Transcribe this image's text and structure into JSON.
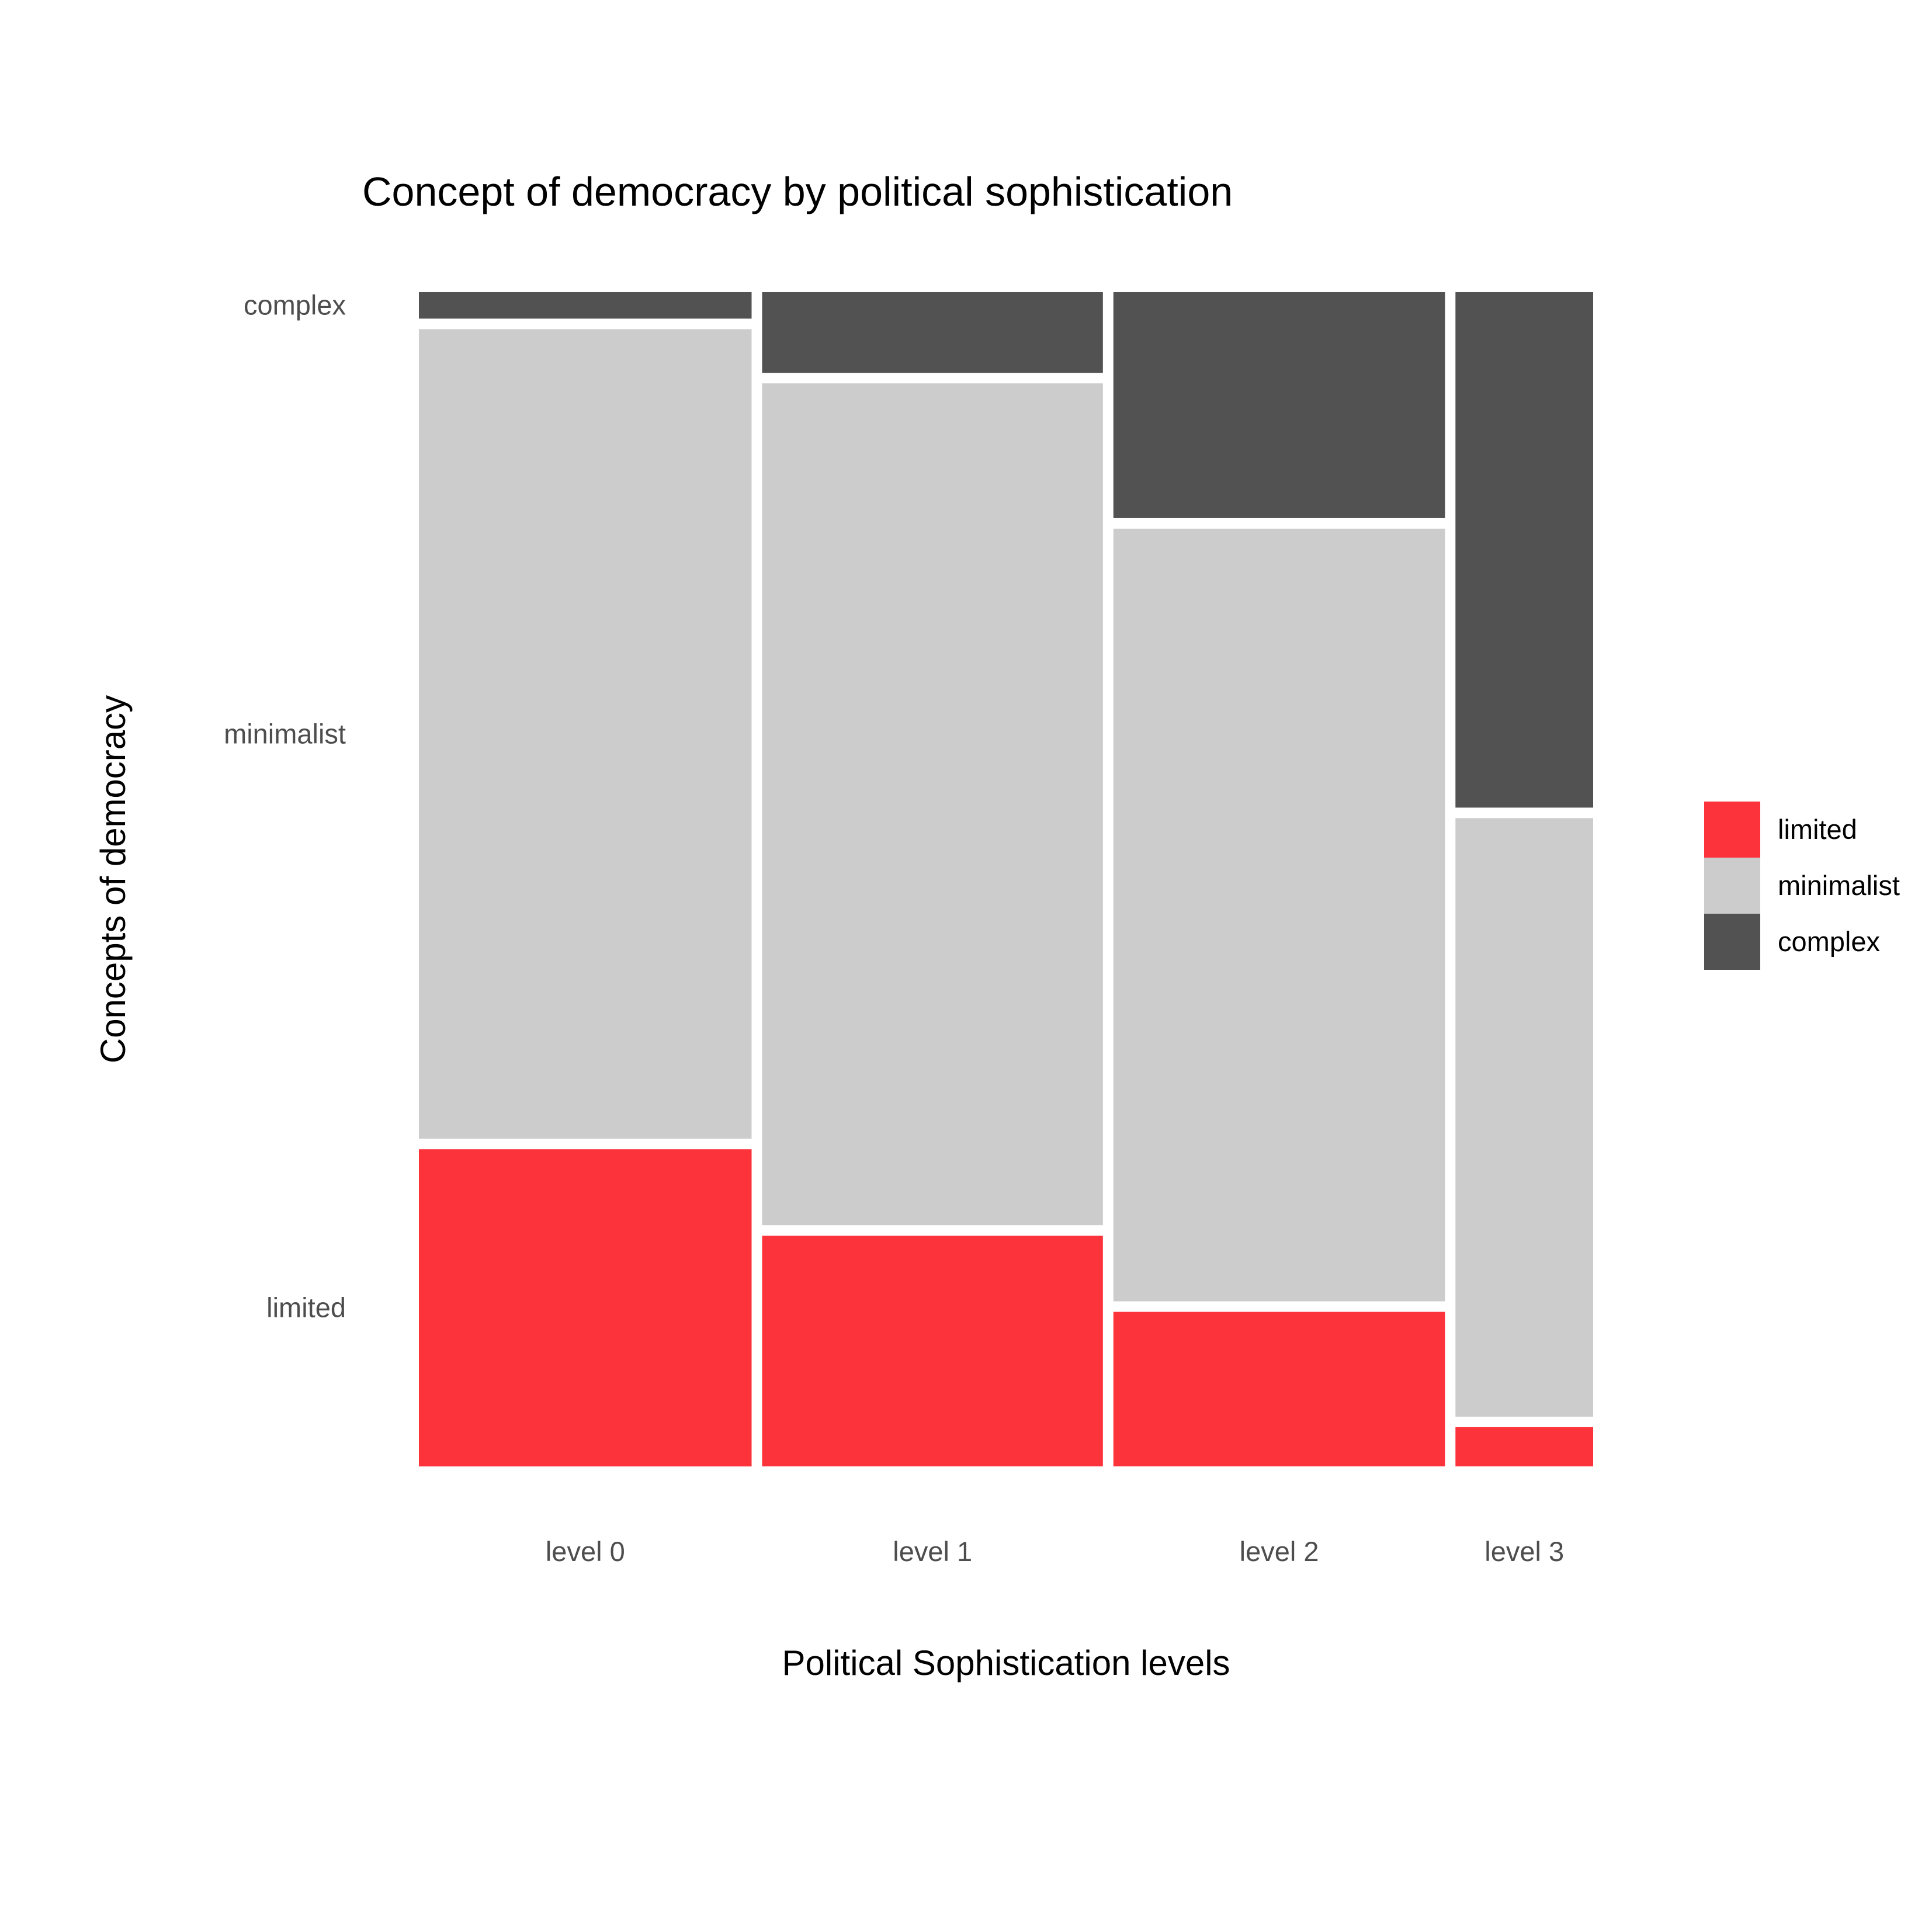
{
  "chart_data": {
    "type": "mosaic",
    "title": "Concept of democracy by political sophistication",
    "xlabel": "Political Sophistication levels",
    "ylabel": "Concepts of democracy",
    "categories": [
      "level 0",
      "level 1",
      "level 2",
      "level 3"
    ],
    "column_widths": [
      0.29,
      0.297,
      0.289,
      0.12
    ],
    "series": [
      {
        "name": "limited",
        "values": [
          0.275,
          0.2,
          0.134,
          0.034
        ],
        "color": "#fc333b"
      },
      {
        "name": "minimalist",
        "values": [
          0.702,
          0.73,
          0.67,
          0.519
        ],
        "color": "#cccccc"
      },
      {
        "name": "complex",
        "values": [
          0.023,
          0.07,
          0.196,
          0.447
        ],
        "color": "#525252"
      }
    ],
    "y_tick_labels": [
      "limited",
      "minimalist",
      "complex"
    ],
    "legend": {
      "placement": "right",
      "items": [
        "limited",
        "minimalist",
        "complex"
      ]
    },
    "grid": false
  }
}
